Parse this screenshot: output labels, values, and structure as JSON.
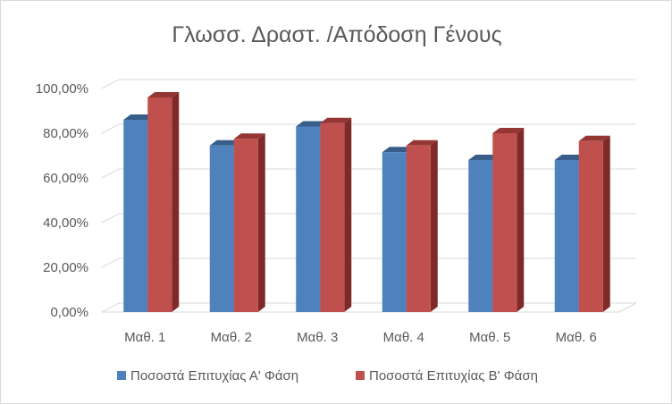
{
  "chart_data": {
    "type": "bar",
    "title": "Γλωσσ. Δραστ. /Απόδοση Γένους",
    "categories": [
      "Μαθ. 1",
      "Μαθ. 2",
      "Μαθ. 3",
      "Μαθ. 4",
      "Μαθ. 5",
      "Μαθ. 6"
    ],
    "series": [
      {
        "name": "Ποσοστά Επιτυχίας Α' Φάση",
        "values": [
          0.86,
          0.745,
          0.83,
          0.715,
          0.68,
          0.68
        ],
        "color": "#4f81bd",
        "side_color": "#2e5c94",
        "top_color": "#385d8a"
      },
      {
        "name": "Ποσοστά Επιτυχίας Β' Φάση",
        "values": [
          0.96,
          0.775,
          0.845,
          0.745,
          0.8,
          0.765
        ],
        "color": "#c0504d",
        "side_color": "#7f2a28",
        "top_color": "#943634"
      }
    ],
    "yticks": [
      "0,00%",
      "20,00%",
      "40,00%",
      "60,00%",
      "80,00%",
      "100,00%"
    ],
    "ylim": [
      0,
      1
    ],
    "grid": true,
    "legend_position": "bottom",
    "three_d": true
  }
}
